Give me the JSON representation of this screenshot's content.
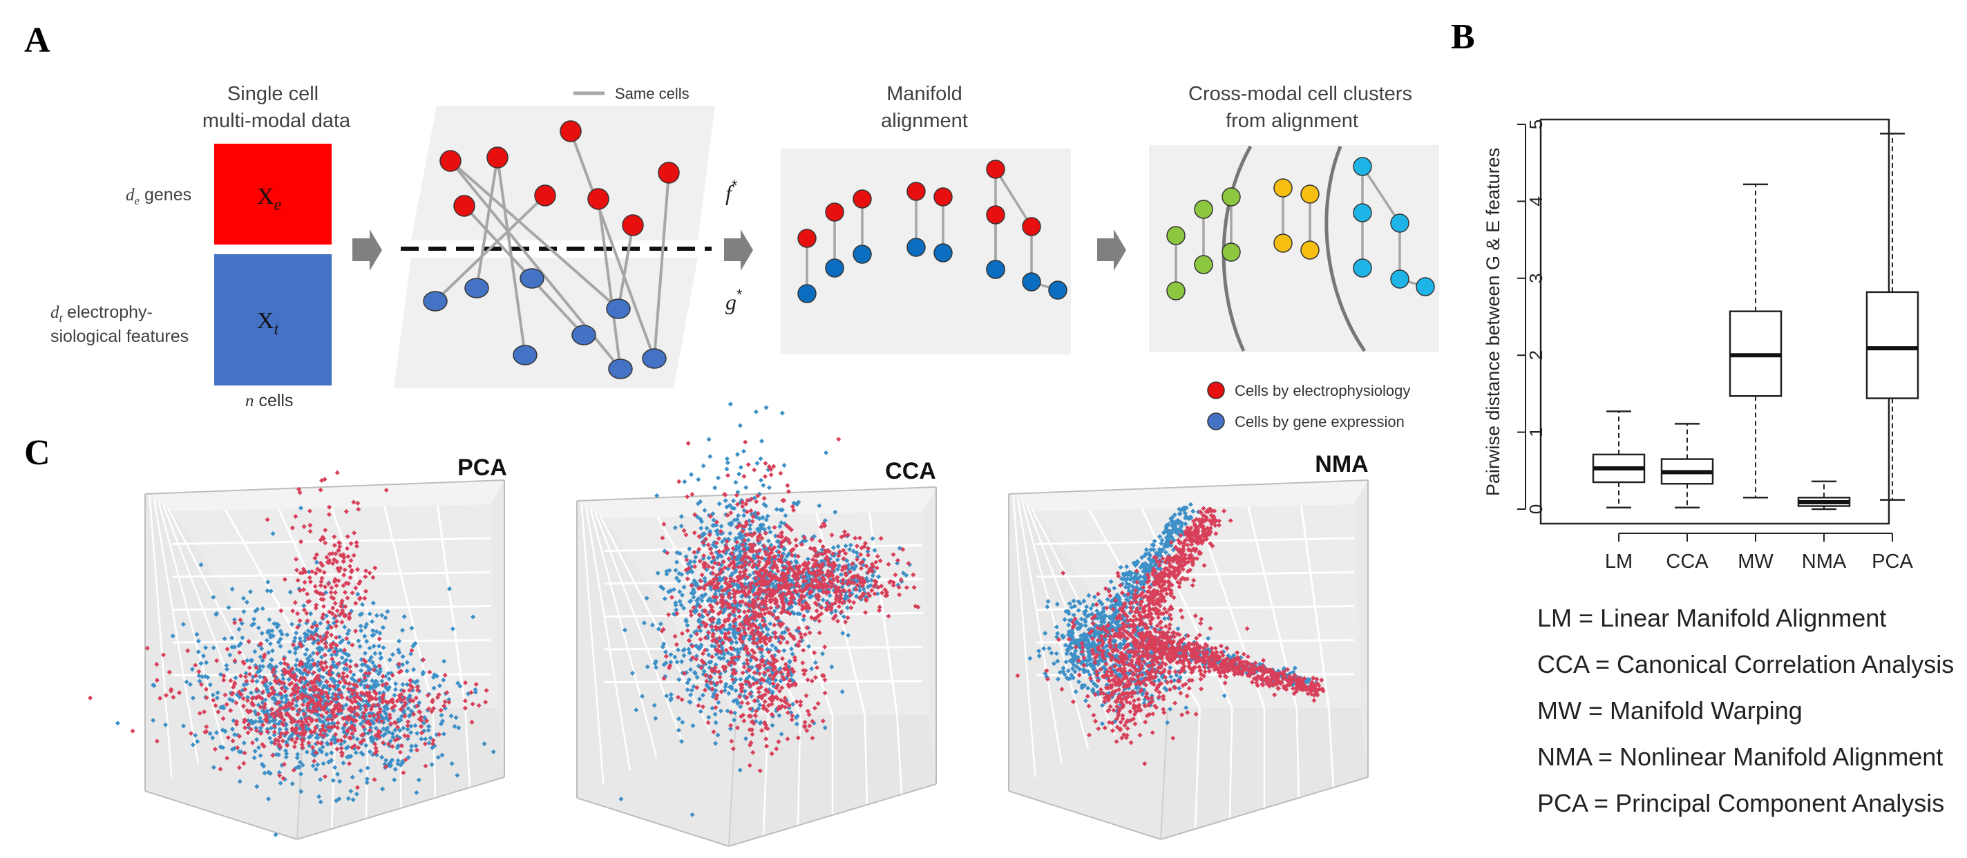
{
  "panels": {
    "a": "A",
    "b": "B",
    "c": "C"
  },
  "panel_a": {
    "data_title_1": "Single cell",
    "data_title_2": "multi-modal data",
    "genes_label_sym": "d",
    "genes_label_sub": "e",
    "genes_label_text": " genes",
    "ephys_label_sym": "d",
    "ephys_label_sub": "t",
    "ephys_label_text_1": " electrophy-",
    "ephys_label_text_2": "siological features",
    "matrix_e": "X",
    "matrix_e_sub": "e",
    "matrix_t": "X",
    "matrix_t_sub": "t",
    "cells_sym": "n",
    "cells_text": " cells",
    "same_cells": "Same cells",
    "f_map": "f",
    "f_star": "*",
    "g_map": "g",
    "g_star": "*",
    "manifold_title_1": "Manifold",
    "manifold_title_2": "alignment",
    "clusters_title_1": "Cross-modal cell clusters",
    "clusters_title_2": "from alignment",
    "legend_ephys": "Cells by electrophysiology",
    "legend_gene": "Cells by gene expression",
    "colors": {
      "ephys": "#e8100f",
      "gene": "#4472c4",
      "gene_aligned": "#0b6dbf",
      "cluster_green": "#8dc63f",
      "cluster_yellow": "#f7be12",
      "cluster_cyan": "#1fb4e8",
      "matrix_red": "#ff0000",
      "matrix_blue": "#4472c4"
    }
  },
  "panel_c": {
    "plots": [
      {
        "title": "PCA",
        "shape": "blob"
      },
      {
        "title": "CCA",
        "shape": "lobes"
      },
      {
        "title": "NMA",
        "shape": "arms"
      }
    ],
    "colors": {
      "ephys": "#d8405a",
      "gene": "#3c8fc7"
    }
  },
  "chart_data": {
    "type": "box",
    "ylabel": "Pairwise distance between G & E features",
    "ylim": [
      0,
      5
    ],
    "yticks": [
      0,
      1,
      2,
      3,
      4,
      5
    ],
    "categories": [
      "LM",
      "CCA",
      "MW",
      "NMA",
      "PCA"
    ],
    "boxes": [
      {
        "name": "LM",
        "min": 0.02,
        "q1": 0.35,
        "median": 0.53,
        "q3": 0.71,
        "max": 1.27
      },
      {
        "name": "CCA",
        "min": 0.02,
        "q1": 0.33,
        "median": 0.48,
        "q3": 0.65,
        "max": 1.11
      },
      {
        "name": "MW",
        "min": 0.15,
        "q1": 1.47,
        "median": 2.0,
        "q3": 2.57,
        "max": 4.22
      },
      {
        "name": "NMA",
        "min": 0.0,
        "q1": 0.04,
        "median": 0.09,
        "q3": 0.15,
        "max": 0.36
      },
      {
        "name": "PCA",
        "min": 0.12,
        "q1": 1.44,
        "median": 2.09,
        "q3": 2.82,
        "max": 4.88
      }
    ]
  },
  "abbreviations": [
    "LM = Linear Manifold Alignment",
    "CCA = Canonical Correlation Analysis",
    "MW = Manifold Warping",
    "NMA = Nonlinear Manifold Alignment",
    "PCA = Principal Component Analysis"
  ]
}
